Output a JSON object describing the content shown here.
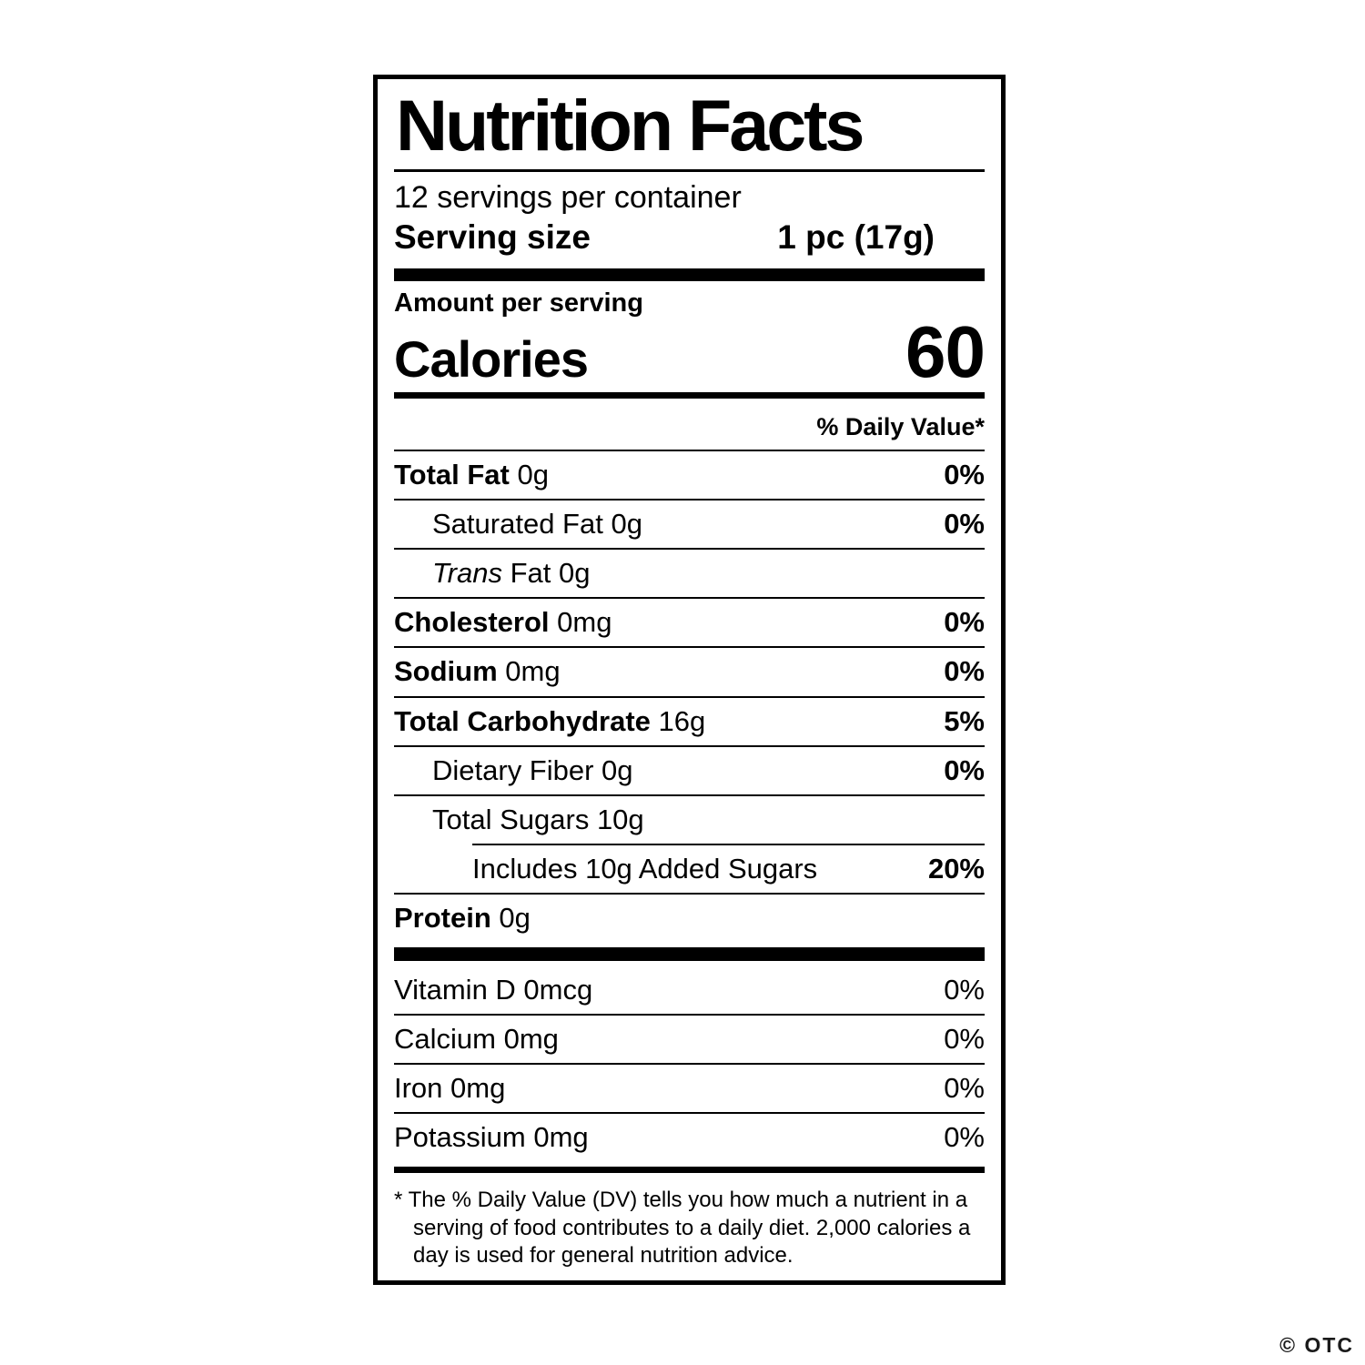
{
  "colors": {
    "foreground": "#000000",
    "background": "#ffffff"
  },
  "label": {
    "title": "Nutrition Facts",
    "servings_per_container": "12 servings per container",
    "serving_size_label": "Serving size",
    "serving_size_value": "1 pc (17g)",
    "amount_per_serving_label": "Amount per serving",
    "calories_label": "Calories",
    "calories_value": "60",
    "daily_value_header": "% Daily Value*",
    "nutrient_rows": [
      {
        "name": "Total Fat",
        "amount": "0g",
        "dv": "0%",
        "bold": true,
        "dv_bold": true,
        "indent": 0
      },
      {
        "name": "Saturated Fat",
        "amount": "0g",
        "dv": "0%",
        "bold": false,
        "dv_bold": true,
        "indent": 1
      },
      {
        "name": "Trans Fat",
        "amount": "0g",
        "dv": "",
        "bold": false,
        "dv_bold": false,
        "indent": 1,
        "italic_word": "Trans"
      },
      {
        "name": "Cholesterol",
        "amount": "0mg",
        "dv": "0%",
        "bold": true,
        "dv_bold": true,
        "indent": 0
      },
      {
        "name": "Sodium",
        "amount": "0mg",
        "dv": "0%",
        "bold": true,
        "dv_bold": true,
        "indent": 0
      },
      {
        "name": "Total Carbohydrate",
        "amount": "16g",
        "dv": "5%",
        "bold": true,
        "dv_bold": true,
        "indent": 0
      },
      {
        "name": "Dietary Fiber",
        "amount": "0g",
        "dv": "0%",
        "bold": false,
        "dv_bold": true,
        "indent": 1
      },
      {
        "name": "Total Sugars",
        "amount": "10g",
        "dv": "",
        "bold": false,
        "dv_bold": false,
        "indent": 1
      },
      {
        "name": "Includes 10g Added Sugars",
        "amount": "",
        "dv": "20%",
        "bold": false,
        "dv_bold": true,
        "indent": 2,
        "sep_indent": true
      },
      {
        "name": "Protein",
        "amount": "0g",
        "dv": "",
        "bold": true,
        "dv_bold": false,
        "indent": 0
      }
    ],
    "micronutrient_rows": [
      {
        "name": "Vitamin D",
        "amount": "0mcg",
        "dv": "0%",
        "bold": false,
        "dv_bold": false,
        "indent": 0
      },
      {
        "name": "Calcium",
        "amount": "0mg",
        "dv": "0%",
        "bold": false,
        "dv_bold": false,
        "indent": 0
      },
      {
        "name": "Iron",
        "amount": "0mg",
        "dv": "0%",
        "bold": false,
        "dv_bold": false,
        "indent": 0
      },
      {
        "name": "Potassium",
        "amount": "0mg",
        "dv": "0%",
        "bold": false,
        "dv_bold": false,
        "indent": 0
      }
    ],
    "footnote": "* The % Daily Value (DV) tells you how much a nutrient in a serving of food contributes to a daily diet. 2,000 calories a day is used for general nutrition advice."
  },
  "watermark": "© OTC"
}
